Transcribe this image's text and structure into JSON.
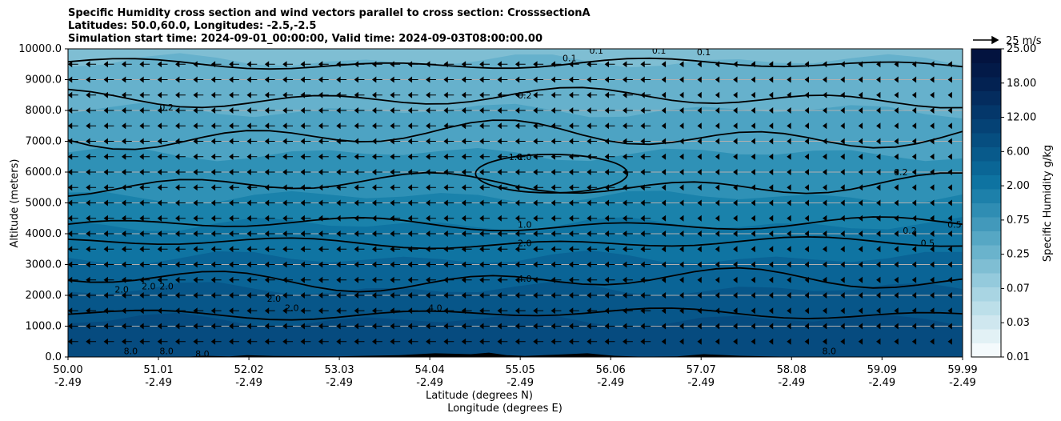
{
  "title": {
    "line1": "Specific Humidity cross section and wind vectors parallel to cross section: CrosssectionA",
    "line2": "Latitudes: 50.0,60.0, Longitudes: -2.5,-2.5",
    "line3": "Simulation start time: 2024-09-01_00:00:00, Valid time: 2024-09-03T08:00:00.00"
  },
  "chart_data": {
    "type": "heatmap",
    "description_type": "filled contour cross section with contour lines and wind vectors",
    "xlabel_line1": "Latitude (degrees N)",
    "xlabel_line2": "Longitude (degrees E)",
    "ylabel": "Altitude (meters)",
    "xlim": [
      50.0,
      59.99
    ],
    "ylim": [
      0,
      10000
    ],
    "x_ticks": [
      {
        "lat": "50.00",
        "lon": "-2.49"
      },
      {
        "lat": "51.01",
        "lon": "-2.49"
      },
      {
        "lat": "52.02",
        "lon": "-2.49"
      },
      {
        "lat": "53.03",
        "lon": "-2.49"
      },
      {
        "lat": "54.04",
        "lon": "-2.49"
      },
      {
        "lat": "55.05",
        "lon": "-2.49"
      },
      {
        "lat": "56.06",
        "lon": "-2.49"
      },
      {
        "lat": "57.07",
        "lon": "-2.49"
      },
      {
        "lat": "58.08",
        "lon": "-2.49"
      },
      {
        "lat": "59.09",
        "lon": "-2.49"
      },
      {
        "lat": "59.99",
        "lon": "-2.49"
      }
    ],
    "y_ticks": [
      "0.0",
      "1000.0",
      "2000.0",
      "3000.0",
      "4000.0",
      "5000.0",
      "6000.0",
      "7000.0",
      "8000.0",
      "9000.0",
      "10000.0"
    ],
    "grid": "horizontal",
    "colorbar": {
      "label": "Specific Humidity g/kg",
      "tick_labels": [
        "0.01",
        "0.03",
        "0.07",
        "0.25",
        "0.75",
        "2.00",
        "6.00",
        "12.00",
        "18.00",
        "25.00"
      ],
      "position": "right"
    },
    "quiver_key": {
      "label": "25 m/s",
      "value": 25
    },
    "contour_labels": [
      {
        "text": "0.1",
        "lat": 55.6,
        "alt": 9700
      },
      {
        "text": "0.1",
        "lat": 55.9,
        "alt": 9950
      },
      {
        "text": "0.1",
        "lat": 56.6,
        "alt": 9950
      },
      {
        "text": "0.1",
        "lat": 57.1,
        "alt": 9900
      },
      {
        "text": "0.2",
        "lat": 55.1,
        "alt": 8500
      },
      {
        "text": "0.2",
        "lat": 51.1,
        "alt": 8100
      },
      {
        "text": "1.0",
        "lat": 55.0,
        "alt": 6500
      },
      {
        "text": "1.0",
        "lat": 55.1,
        "alt": 6500
      },
      {
        "text": "1.0",
        "lat": 55.1,
        "alt": 4300
      },
      {
        "text": "2.0",
        "lat": 55.1,
        "alt": 3700
      },
      {
        "text": "4.0",
        "lat": 55.1,
        "alt": 2550
      },
      {
        "text": "2.0",
        "lat": 50.6,
        "alt": 2200
      },
      {
        "text": "2.0",
        "lat": 50.9,
        "alt": 2300
      },
      {
        "text": "2.0",
        "lat": 51.1,
        "alt": 2300
      },
      {
        "text": "2.0",
        "lat": 52.3,
        "alt": 1900
      },
      {
        "text": "2.0",
        "lat": 52.5,
        "alt": 1600
      },
      {
        "text": "4.0",
        "lat": 54.1,
        "alt": 1600
      },
      {
        "text": "0.2",
        "lat": 59.3,
        "alt": 6000
      },
      {
        "text": "0.2",
        "lat": 59.4,
        "alt": 4100
      },
      {
        "text": "0.5",
        "lat": 59.9,
        "alt": 4300
      },
      {
        "text": "0.5",
        "lat": 59.6,
        "alt": 3700
      },
      {
        "text": "8.0",
        "lat": 50.7,
        "alt": 200
      },
      {
        "text": "8.0",
        "lat": 51.1,
        "alt": 200
      },
      {
        "text": "8.0",
        "lat": 51.5,
        "alt": 100
      },
      {
        "text": "8.0",
        "lat": 58.5,
        "alt": 200
      }
    ]
  }
}
